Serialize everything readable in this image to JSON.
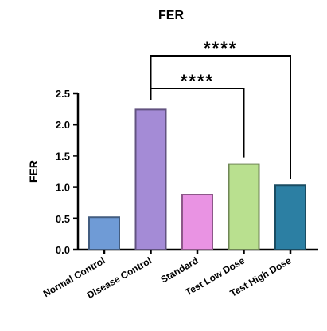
{
  "chart_data": {
    "type": "bar",
    "title": "FER",
    "xlabel": "",
    "ylabel": "FER",
    "categories": [
      "Normal Control",
      "Disease Control",
      "Standard",
      "Test Low Dose",
      "Test High Dose"
    ],
    "values": [
      0.52,
      2.24,
      0.88,
      1.37,
      1.03
    ],
    "colors": [
      "#6f9bd6",
      "#a48bd6",
      "#e993e3",
      "#b9e08f",
      "#2c7fa3"
    ],
    "ylim": [
      0,
      2.5
    ],
    "yticks": [
      "0.0",
      "0.5",
      "1.0",
      "1.5",
      "2.0",
      "2.5"
    ],
    "grid": false,
    "annotations": [
      {
        "from": "Disease Control",
        "to": "Test Low Dose",
        "label": "****"
      },
      {
        "from": "Disease Control",
        "to": "Test High Dose",
        "label": "****"
      }
    ]
  }
}
